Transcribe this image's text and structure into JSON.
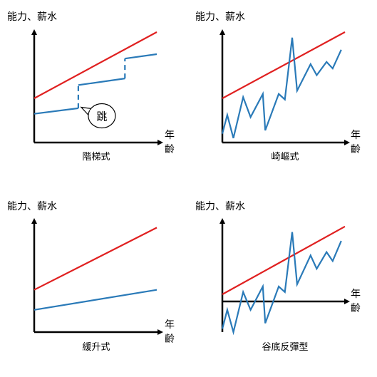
{
  "colors": {
    "red": "#e02020",
    "blue": "#2a7ab8",
    "axis": "#000000"
  },
  "chart_data": [
    {
      "type": "line",
      "title": "階梯式",
      "ylabel": "能力、薪水",
      "xlabel_top": "年",
      "xlabel_bottom": "齡",
      "xlim": [
        0,
        100
      ],
      "ylim": [
        0,
        100
      ],
      "series": [
        {
          "name": "red",
          "style": "solid",
          "points": [
            [
              0,
              40
            ],
            [
              100,
              100
            ]
          ]
        },
        {
          "name": "blue-1",
          "style": "solid",
          "points": [
            [
              0,
              26
            ],
            [
              36,
              31
            ]
          ]
        },
        {
          "name": "blue-2",
          "style": "dashed",
          "points": [
            [
              36,
              31
            ],
            [
              36,
              52
            ]
          ]
        },
        {
          "name": "blue-3",
          "style": "solid",
          "points": [
            [
              36,
              52
            ],
            [
              74,
              58
            ]
          ]
        },
        {
          "name": "blue-4",
          "style": "dashed",
          "points": [
            [
              74,
              58
            ],
            [
              74,
              76
            ]
          ]
        },
        {
          "name": "blue-5",
          "style": "solid",
          "points": [
            [
              74,
              76
            ],
            [
              100,
              80
            ]
          ]
        }
      ],
      "annotation": {
        "text": "跳",
        "at": [
          36,
          30
        ]
      }
    },
    {
      "type": "line",
      "title": "崎嶇式",
      "ylabel": "能力、薪水",
      "xlabel_top": "年",
      "xlabel_bottom": "齡",
      "xlim": [
        0,
        100
      ],
      "ylim": [
        0,
        100
      ],
      "series": [
        {
          "name": "red",
          "style": "solid",
          "points": [
            [
              0,
              40
            ],
            [
              100,
              100
            ]
          ]
        },
        {
          "name": "blue",
          "style": "solid",
          "points": [
            [
              0,
              8
            ],
            [
              4,
              25
            ],
            [
              9,
              4
            ],
            [
              17,
              41
            ],
            [
              23,
              23
            ],
            [
              33,
              44
            ],
            [
              35,
              11
            ],
            [
              46,
              44
            ],
            [
              51,
              39
            ],
            [
              57,
              95
            ],
            [
              61,
              47
            ],
            [
              72,
              71
            ],
            [
              77,
              61
            ],
            [
              85,
              73
            ],
            [
              90,
              67
            ],
            [
              97,
              84
            ]
          ]
        }
      ]
    },
    {
      "type": "line",
      "title": "緩升式",
      "ylabel": "能力、薪水",
      "xlabel_top": "年",
      "xlabel_bottom": "齡",
      "xlim": [
        0,
        100
      ],
      "ylim": [
        0,
        100
      ],
      "series": [
        {
          "name": "red",
          "style": "solid",
          "points": [
            [
              0,
              38
            ],
            [
              100,
              94
            ]
          ]
        },
        {
          "name": "blue",
          "style": "solid",
          "points": [
            [
              0,
              20
            ],
            [
              100,
              38
            ]
          ]
        }
      ]
    },
    {
      "type": "line",
      "title": "谷底反彈型",
      "ylabel": "能力、薪水",
      "xlabel_top": "年",
      "xlabel_bottom": "齡",
      "xlim": [
        0,
        100
      ],
      "ylim": [
        -25,
        75
      ],
      "series": [
        {
          "name": "red",
          "style": "solid",
          "points": [
            [
              0,
              9
            ],
            [
              100,
              70
            ]
          ]
        },
        {
          "name": "blue",
          "style": "solid",
          "points": [
            [
              0,
              -22
            ],
            [
              4,
              -5
            ],
            [
              9,
              -25
            ],
            [
              17,
              11
            ],
            [
              23,
              -5
            ],
            [
              33,
              16
            ],
            [
              35,
              -17
            ],
            [
              46,
              16
            ],
            [
              51,
              11
            ],
            [
              57,
              65
            ],
            [
              61,
              18
            ],
            [
              72,
              44
            ],
            [
              77,
              32
            ],
            [
              85,
              47
            ],
            [
              90,
              39
            ],
            [
              97,
              57
            ]
          ]
        }
      ]
    }
  ]
}
